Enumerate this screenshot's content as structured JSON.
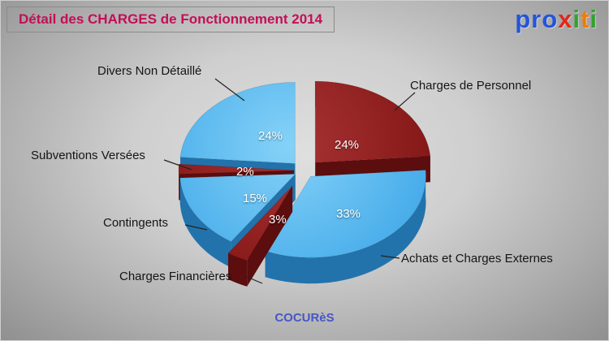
{
  "header": {
    "title": "Détail des CHARGES de Fonctionnement 2014"
  },
  "logo": {
    "text": "proxiti",
    "letters": [
      {
        "ch": "p",
        "color": "#2355d8"
      },
      {
        "ch": "r",
        "color": "#2355d8"
      },
      {
        "ch": "o",
        "color": "#2355d8"
      },
      {
        "ch": "x",
        "color": "#e02818"
      },
      {
        "ch": "i",
        "color": "#2fa32f"
      },
      {
        "ch": "t",
        "color": "#f07d00"
      },
      {
        "ch": "i",
        "color": "#2fa32f"
      }
    ]
  },
  "footer": {
    "text": "COCURèS"
  },
  "chart_data": {
    "type": "pie",
    "style": "3d-exploded",
    "title": "Détail des CHARGES de Fonctionnement 2014",
    "unit": "percent",
    "legend": "none",
    "palette": {
      "blue_top": "#49b2f0",
      "blue_side": "#2273ab",
      "red_top": "#8f1d1d",
      "red_side": "#5c0d0d",
      "title_color": "#c40e57",
      "footer_color": "#4656c8"
    },
    "slices": [
      {
        "label": "Charges de Personnel",
        "value": 24,
        "pct": "24%",
        "tone": "red",
        "explode": 1.5
      },
      {
        "label": "Achats et Charges Externes",
        "value": 33,
        "pct": "33%",
        "tone": "blue",
        "explode": 1.0
      },
      {
        "label": "Charges Financières",
        "value": 3,
        "pct": "3%",
        "tone": "red",
        "explode": 2.4
      },
      {
        "label": "Contingents",
        "value": 15,
        "pct": "15%",
        "tone": "blue",
        "explode": 1.0
      },
      {
        "label": "Subventions Versées",
        "value": 2,
        "pct": "2%",
        "tone": "red",
        "explode": 1.0
      },
      {
        "label": "Divers Non Détaillé",
        "value": 24,
        "pct": "24%",
        "tone": "blue",
        "explode": 1.3
      }
    ]
  }
}
